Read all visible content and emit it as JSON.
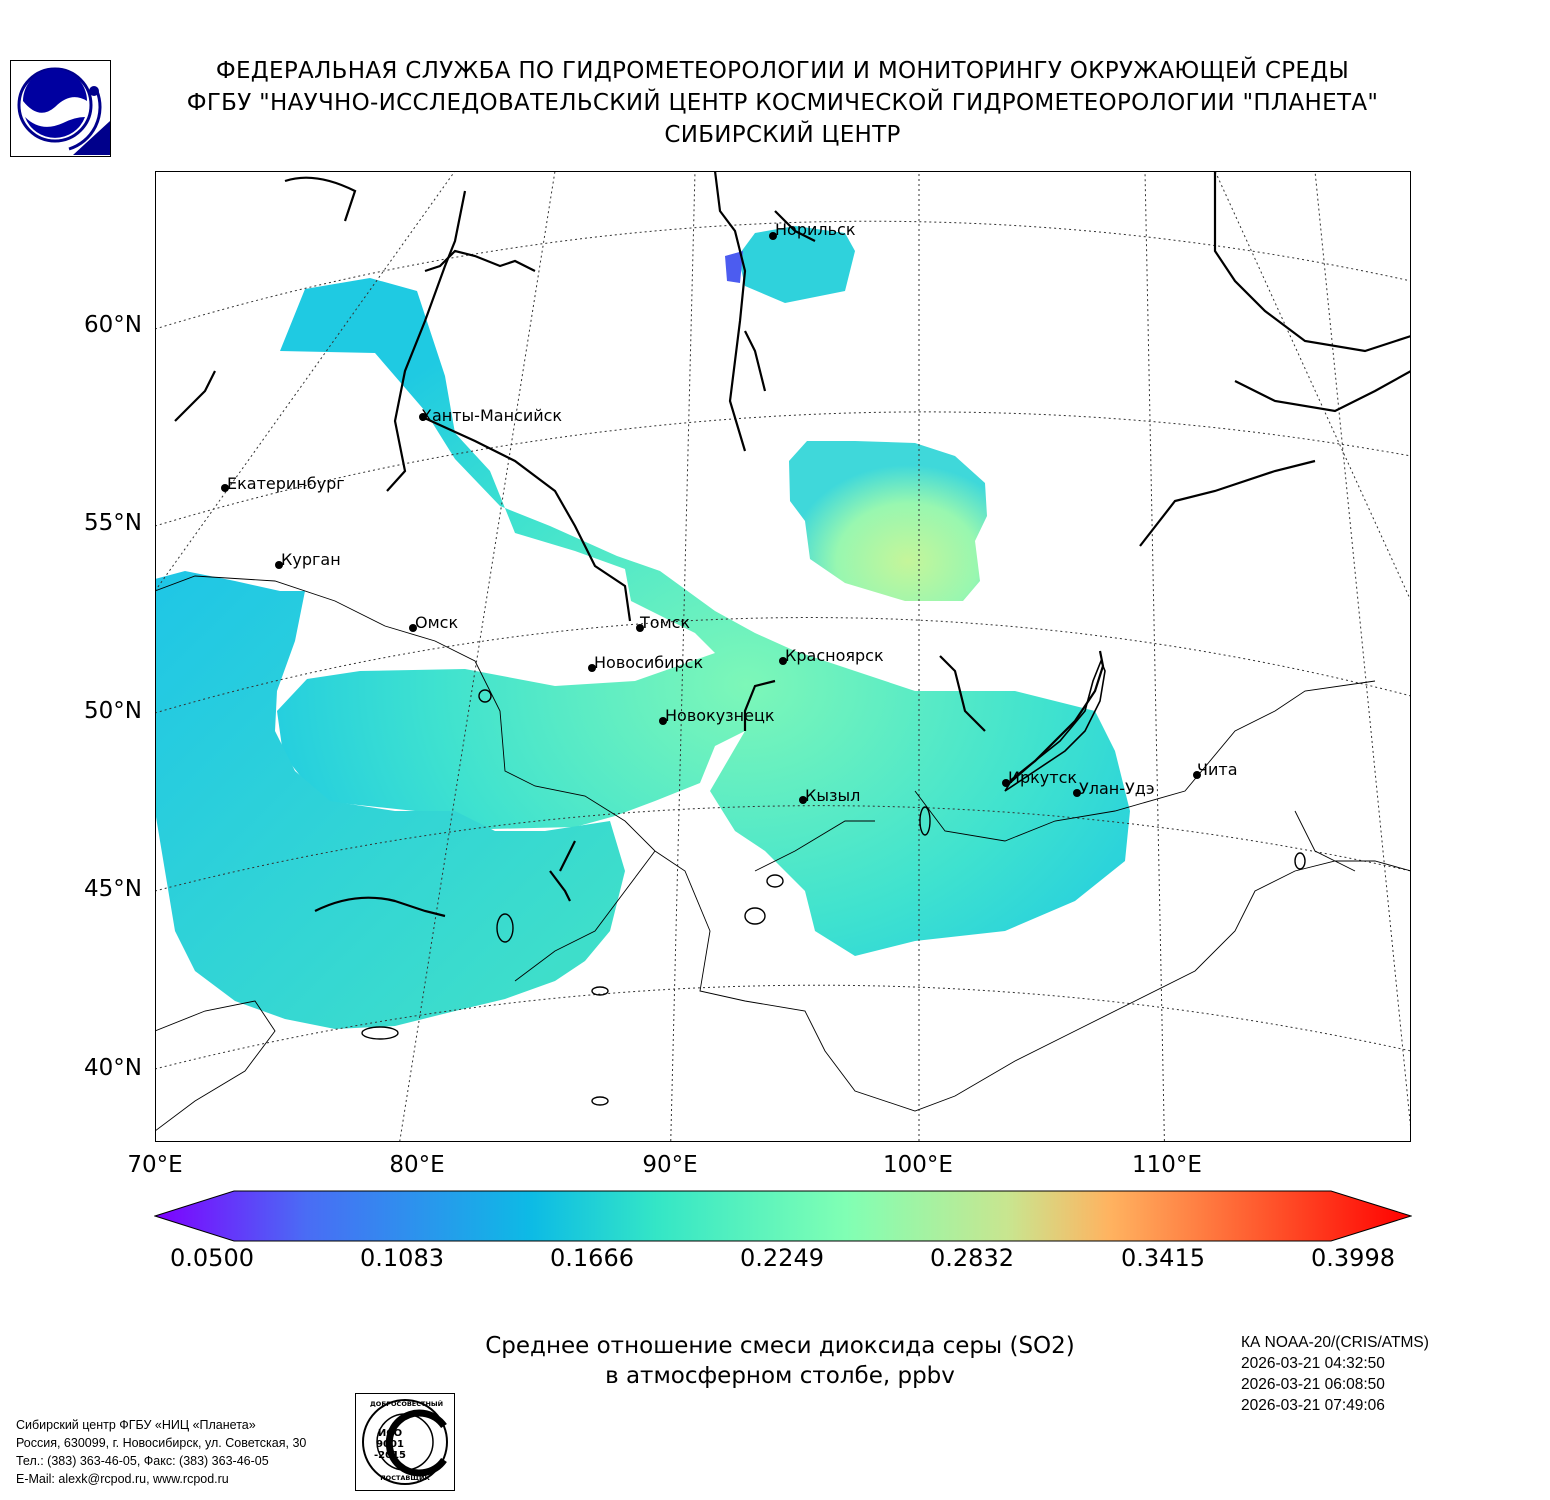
{
  "header": {
    "line1": "ФЕДЕРАЛЬНАЯ СЛУЖБА ПО ГИДРОМЕТЕОРОЛОГИИ И МОНИТОРИНГУ ОКРУЖАЮЩЕЙ СРЕДЫ",
    "line2": "ФГБУ \"НАУЧНО-ИССЛЕДОВАТЕЛЬСКИЙ ЦЕНТР КОСМИЧЕСКОЙ ГИДРОМЕТЕОРОЛОГИИ \"ПЛАНЕТА\"",
    "line3": "СИБИРСКИЙ ЦЕНТР"
  },
  "map": {
    "lat_labels": [
      "60°N",
      "55°N",
      "50°N",
      "45°N",
      "40°N"
    ],
    "lon_labels": [
      "70°E",
      "80°E",
      "90°E",
      "100°E",
      "110°E"
    ],
    "cities": [
      {
        "name": "Норильск"
      },
      {
        "name": "Ханты-Мансийск"
      },
      {
        "name": "Екатеринбург"
      },
      {
        "name": "Курган"
      },
      {
        "name": "Омск"
      },
      {
        "name": "Томск"
      },
      {
        "name": "Новосибирск"
      },
      {
        "name": "Красноярск"
      },
      {
        "name": "Новокузнецк"
      },
      {
        "name": "Кызыл"
      },
      {
        "name": "Иркутск"
      },
      {
        "name": "Улан-Удэ"
      },
      {
        "name": "Чита"
      }
    ]
  },
  "colorbar": {
    "ticks": [
      "0.0500",
      "0.1083",
      "0.1666",
      "0.2249",
      "0.2832",
      "0.3415",
      "0.3998"
    ],
    "min": 0.05,
    "max": 0.3998,
    "colors": [
      "#7f00ff",
      "#4a6cf5",
      "#0dbbe5",
      "#34e6c6",
      "#80ffb4",
      "#c9e58f",
      "#ffb360",
      "#ff5a2e",
      "#ff0000"
    ]
  },
  "footer": {
    "title_line1": "Среднее отношение смеси диоксида серы (SO2)",
    "title_line2": "в атмосферном столбе, ppbv",
    "satellite": "КА NOAA-20/(CRIS/ATMS)",
    "times": [
      "2026-03-21 04:32:50",
      "2026-03-21 06:08:50",
      "2026-03-21 07:49:06"
    ],
    "contact": [
      "Сибирский центр ФГБУ «НИЦ «Планета»",
      "Россия, 630099, г. Новосибирск, ул. Советская, 30",
      "Тел.: (383) 363-46-05, Факс: (383) 363-46-05",
      "E-Mail: alexk@rcpod.ru, www.rcpod.ru"
    ],
    "iso_badge": {
      "top_text": "ДОБРОСОВЕСТНЫЙ",
      "mid_text_1": "ИСО",
      "mid_text_2": "9001",
      "mid_text_3": "-2015",
      "bottom_text": "ПОСТАВЩИК"
    }
  }
}
